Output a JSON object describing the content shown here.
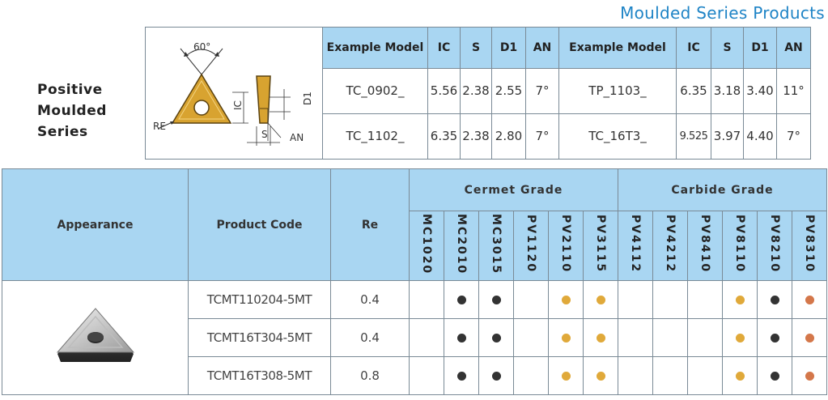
{
  "page_title": "Moulded Series Products",
  "series_label": [
    "Positive",
    "Moulded",
    "Series"
  ],
  "figure": {
    "angle": "60°",
    "re": "RE",
    "ic": "IC",
    "s": "S",
    "d1": "D1",
    "an": "AN"
  },
  "spec_table": {
    "headers": [
      "Example Model",
      "IC",
      "S",
      "D1",
      "AN",
      "Example Model",
      "IC",
      "S",
      "D1",
      "AN"
    ],
    "rows": [
      [
        "TC_0902_",
        "5.56",
        "2.38",
        "2.55",
        "7°",
        "TP_1103_",
        "6.35",
        "3.18",
        "3.40",
        "11°"
      ],
      [
        "TC_1102_",
        "6.35",
        "2.38",
        "2.80",
        "7°",
        "TC_16T3_",
        "9.525",
        "3.97",
        "4.40",
        "7°"
      ]
    ]
  },
  "product_table": {
    "headers": {
      "appearance": "Appearance",
      "product_code": "Product Code",
      "re": "Re",
      "cermet_grade": "Cermet Grade",
      "carbide_grade": "Carbide Grade"
    },
    "cermet_grades": [
      "MC1020",
      "MC2010",
      "MC3015",
      "PV1120",
      "PV2110",
      "PV3115"
    ],
    "carbide_grades": [
      "PV4112",
      "PV4212",
      "PV8410",
      "PV8110",
      "PV8210",
      "PV8310"
    ],
    "dot_colors": {
      "black": "#333333",
      "gold": "#e0a93a",
      "copper": "#d4774a"
    },
    "rows": [
      {
        "code": "TCMT110204-5MT",
        "re": "0.4",
        "cermet": [
          "",
          "black",
          "black",
          "",
          "gold",
          "gold"
        ],
        "carbide": [
          "",
          "",
          "",
          "gold",
          "black",
          "copper"
        ]
      },
      {
        "code": "TCMT16T304-5MT",
        "re": "0.4",
        "cermet": [
          "",
          "black",
          "black",
          "",
          "gold",
          "gold"
        ],
        "carbide": [
          "",
          "",
          "",
          "gold",
          "black",
          "copper"
        ]
      },
      {
        "code": "TCMT16T308-5MT",
        "re": "0.8",
        "cermet": [
          "",
          "black",
          "black",
          "",
          "gold",
          "gold"
        ],
        "carbide": [
          "",
          "",
          "",
          "gold",
          "black",
          "copper"
        ]
      }
    ]
  },
  "header_color": "#a9d6f2",
  "title_color": "#1f84c6"
}
